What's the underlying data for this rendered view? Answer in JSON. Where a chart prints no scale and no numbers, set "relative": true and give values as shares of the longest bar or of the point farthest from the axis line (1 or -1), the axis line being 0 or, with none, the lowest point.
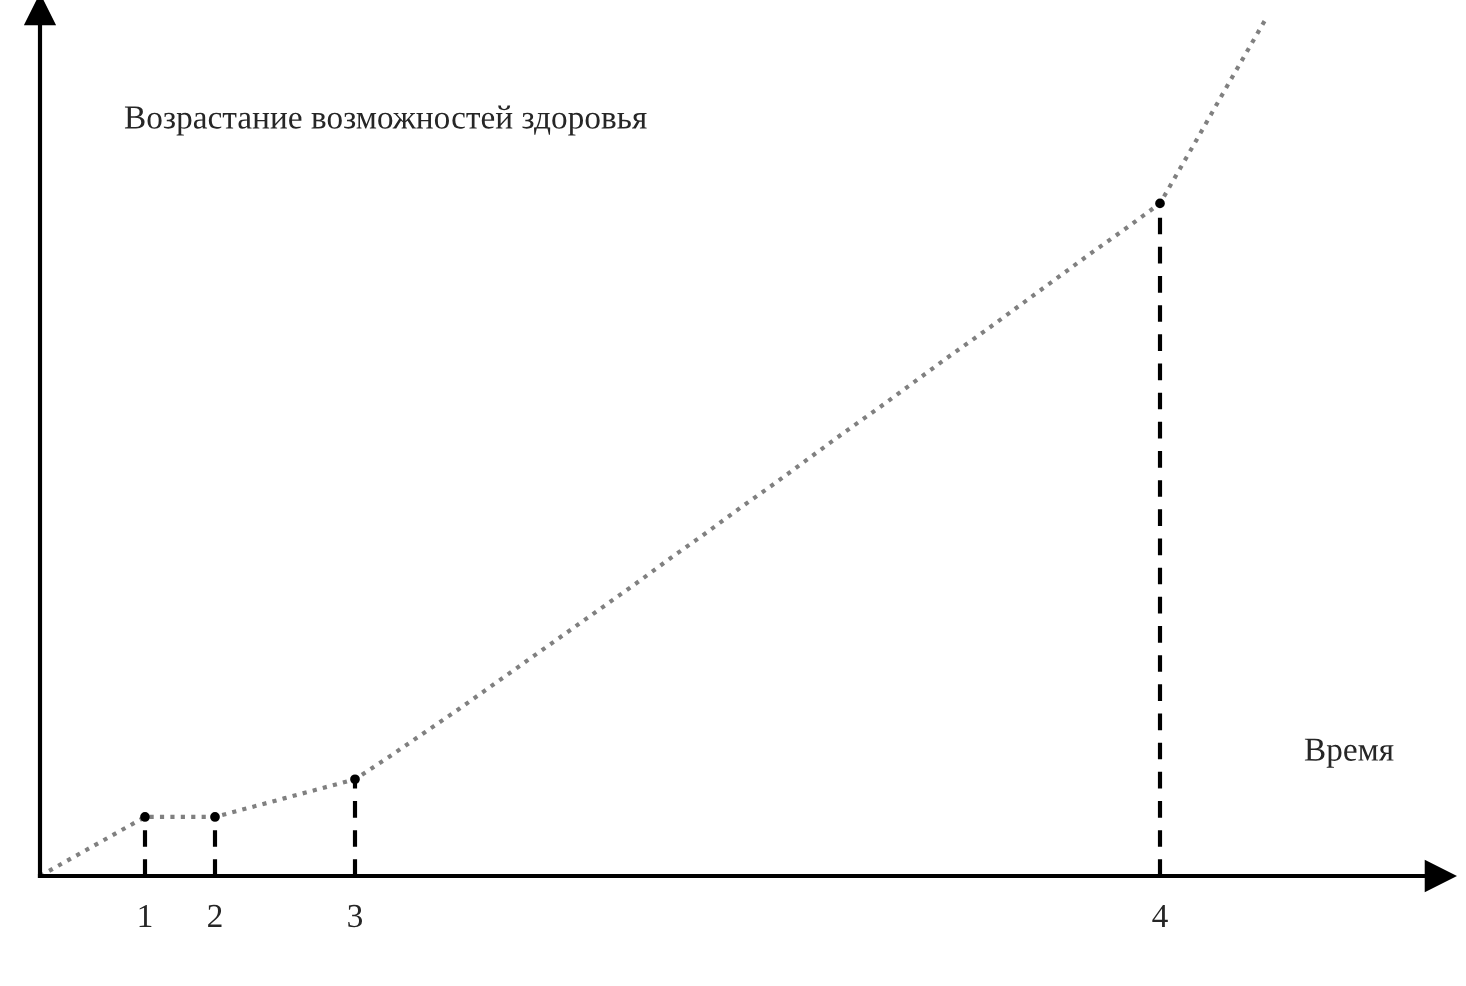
{
  "chart_data": {
    "type": "line",
    "relative": true,
    "xlabel": "Время",
    "ylabel": "Возрастание возможностей здоровья",
    "categories": [
      null,
      null,
      null,
      "1",
      null,
      "2",
      null,
      null,
      null,
      "3",
      null,
      null,
      null,
      null,
      null,
      null,
      null,
      null,
      null,
      null,
      null,
      null,
      null,
      null,
      null,
      null,
      null,
      null,
      null,
      null,
      null,
      null,
      "4",
      null,
      null,
      null,
      null,
      null,
      null,
      null,
      null
    ],
    "tick_labels": "x",
    "marker": "none",
    "series": [
      {
        "color": "#808080",
        "line_style": "dotted",
        "values": [
          0,
          0.023,
          0.046,
          0.069,
          0.069,
          0.069,
          0.08,
          0.091,
          0.102,
          0.113,
          0.14,
          0.168,
          0.196,
          0.225,
          0.254,
          0.283,
          0.312,
          0.341,
          0.371,
          0.4,
          0.43,
          0.459,
          0.489,
          0.519,
          0.548,
          0.578,
          0.608,
          0.637,
          0.667,
          0.697,
          0.727,
          0.756,
          0.786,
          0.857,
          0.929,
          1,
          null,
          null,
          null,
          null,
          null
        ]
      },
      {
        "type": "lollipop",
        "color": "#000000",
        "line_style": "dashed",
        "values": [
          null,
          null,
          null,
          0.069,
          null,
          0.069,
          null,
          null,
          null,
          0.113,
          null,
          null,
          null,
          null,
          null,
          null,
          null,
          null,
          null,
          null,
          null,
          null,
          null,
          null,
          null,
          null,
          null,
          null,
          null,
          null,
          null,
          null,
          0.786,
          null,
          null,
          null,
          null,
          null,
          null,
          null,
          null
        ]
      }
    ]
  }
}
